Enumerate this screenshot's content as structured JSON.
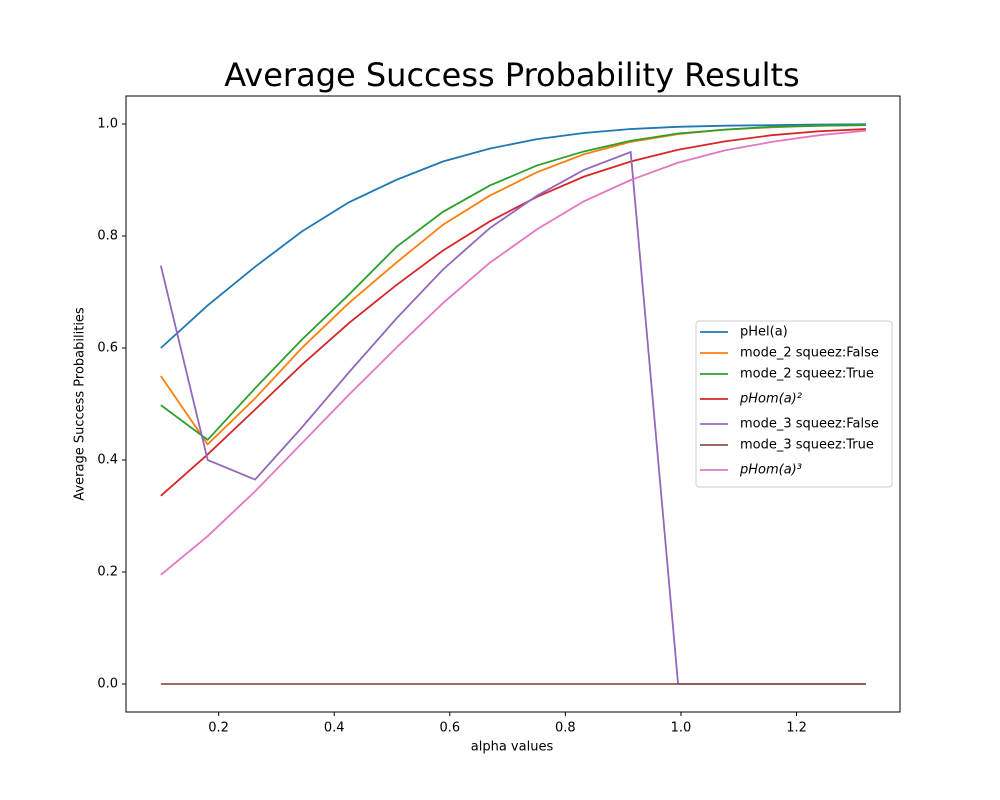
{
  "chart_data": {
    "type": "line",
    "title": "Average Success Probability Results",
    "xlabel": "alpha values",
    "ylabel": "Average Success Probabilities",
    "x": [
      0.1,
      0.181,
      0.263,
      0.344,
      0.425,
      0.507,
      0.588,
      0.669,
      0.751,
      0.832,
      0.913,
      0.995,
      1.076,
      1.157,
      1.239,
      1.32
    ],
    "series": [
      {
        "name": "pHel(a)",
        "color": "#1f77b4",
        "values": [
          0.6,
          0.676,
          0.745,
          0.808,
          0.86,
          0.9,
          0.933,
          0.956,
          0.973,
          0.984,
          0.991,
          0.995,
          0.997,
          0.998,
          0.999,
          0.9995
        ]
      },
      {
        "name": "mode_2 squeez:False",
        "color": "#ff7f0e",
        "values": [
          0.55,
          0.428,
          0.51,
          0.6,
          0.68,
          0.752,
          0.82,
          0.872,
          0.914,
          0.946,
          0.968,
          0.982,
          0.99,
          0.994,
          0.997,
          0.998
        ]
      },
      {
        "name": "mode_2 squeez:True",
        "color": "#2ca02c",
        "values": [
          0.498,
          0.436,
          0.528,
          0.615,
          0.695,
          0.78,
          0.843,
          0.89,
          0.926,
          0.951,
          0.97,
          0.983,
          0.99,
          0.995,
          0.997,
          0.998
        ]
      },
      {
        "name": "pHom(a)²",
        "color": "#d62728",
        "values": [
          0.336,
          0.41,
          0.49,
          0.57,
          0.644,
          0.712,
          0.774,
          0.826,
          0.87,
          0.906,
          0.933,
          0.954,
          0.969,
          0.98,
          0.987,
          0.991
        ]
      },
      {
        "name": "mode_3 squeez:False",
        "color": "#9467bd",
        "values": [
          0.747,
          0.4,
          0.365,
          0.458,
          0.556,
          0.652,
          0.74,
          0.814,
          0.872,
          0.918,
          0.95,
          0,
          0,
          0,
          0,
          0
        ]
      },
      {
        "name": "mode_3 squeez:True",
        "color": "#8c564b",
        "values": [
          0,
          0,
          0,
          0,
          0,
          0,
          0,
          0,
          0,
          0,
          0,
          0,
          0,
          0,
          0,
          0
        ]
      },
      {
        "name": "pHom(a)³",
        "color": "#e377c2",
        "values": [
          0.195,
          0.264,
          0.344,
          0.43,
          0.516,
          0.6,
          0.68,
          0.752,
          0.812,
          0.862,
          0.9,
          0.931,
          0.953,
          0.968,
          0.98,
          0.988
        ]
      }
    ],
    "xlim": [
      0.0397,
      1.379
    ],
    "ylim": [
      -0.05,
      1.05
    ],
    "xticks": [
      0.2,
      0.4,
      0.6,
      0.8,
      {
        "value": 1,
        "label": "1.0"
      },
      1.2
    ],
    "yticks": [
      {
        "value": 0,
        "label": "0.0"
      },
      0.2,
      0.4,
      0.6,
      0.8,
      {
        "value": 1,
        "label": "1.0"
      }
    ],
    "legend": "center right"
  }
}
